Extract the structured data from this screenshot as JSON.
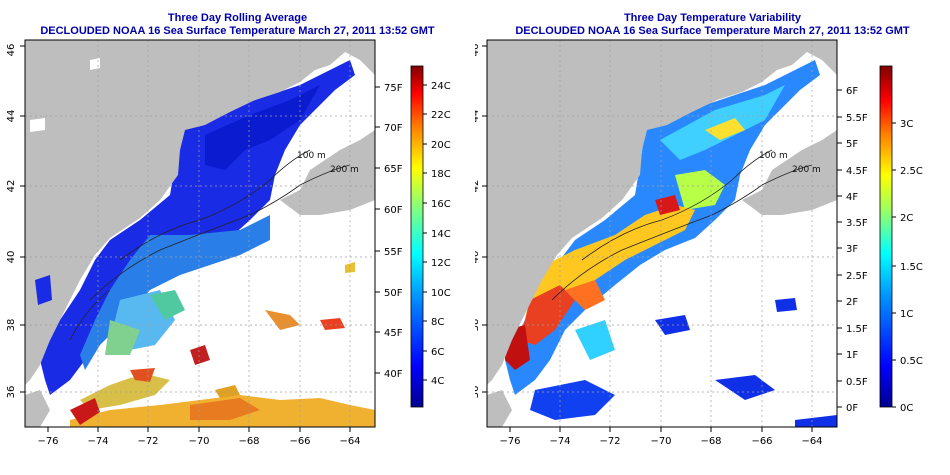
{
  "panels": [
    {
      "title": "Three Day Rolling Average",
      "subtitle": "DECLOUDED NOAA 16 Sea Surface Temperature March 27, 2011 13:52 GMT",
      "fahrenheit_ticks": [
        "40F",
        "45F",
        "50F",
        "55F",
        "60F",
        "65F",
        "70F",
        "75F"
      ],
      "celsius_ticks": [
        "4C",
        "6C",
        "8C",
        "10C",
        "12C",
        "14C",
        "16C",
        "18C",
        "20C",
        "22C",
        "24C"
      ]
    },
    {
      "title": "Three Day Temperature Variability",
      "subtitle": "DECLOUDED NOAA 16 Sea Surface Temperature March 27, 2011 13:52 GMT",
      "fahrenheit_ticks": [
        "0F",
        "0.5F",
        "1F",
        "1.5F",
        "2F",
        "2.5F",
        "3F",
        "3.5F",
        "4F",
        "4.5F",
        "5F",
        "5.5F",
        "6F"
      ],
      "celsius_ticks": [
        "0C",
        "0.5C",
        "1C",
        "1.5C",
        "2C",
        "2.5C",
        "3C"
      ]
    }
  ],
  "longitude_ticks": [
    "−76",
    "−74",
    "−72",
    "−70",
    "−68",
    "−66",
    "−64"
  ],
  "latitude_ticks": [
    "36",
    "38",
    "40",
    "42",
    "44",
    "46"
  ],
  "contour_labels": [
    "100 m",
    "200 m"
  ],
  "colors": {
    "land": "#bebebe",
    "title": "#0000aa",
    "gridline": "#a0a0a0"
  }
}
